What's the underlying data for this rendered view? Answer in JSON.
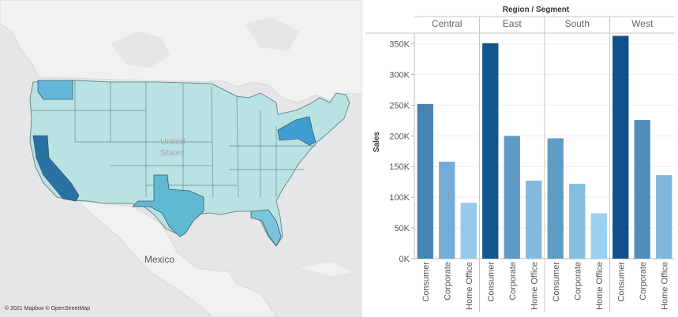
{
  "map": {
    "country_label": "United States",
    "mexico_label": "Mexico",
    "attribution": "© 2021 Mapbox © OpenStreetMap",
    "base_color": "#b9e3e2",
    "colors": {
      "california": "#2a72a4",
      "new_york": "#3f9fd3",
      "texas": "#5fb9d3",
      "washington": "#62b6d6",
      "florida": "#7bc5dc"
    }
  },
  "chart_data": {
    "type": "bar",
    "title": "Region / Segment",
    "ylabel": "Sales",
    "ylim": [
      0,
      370000
    ],
    "yticks": [
      0,
      50000,
      100000,
      150000,
      200000,
      250000,
      300000,
      350000
    ],
    "ytick_labels": [
      "0K",
      "50K",
      "100K",
      "150K",
      "200K",
      "250K",
      "300K",
      "350K"
    ],
    "regions": [
      {
        "name": "Central",
        "categories": [
          "Consumer",
          "Corporate",
          "Home Office"
        ],
        "values": [
          252000,
          158000,
          91000
        ]
      },
      {
        "name": "East",
        "categories": [
          "Consumer",
          "Corporate",
          "Home Office"
        ],
        "values": [
          351000,
          200000,
          127000
        ]
      },
      {
        "name": "South",
        "categories": [
          "Consumer",
          "Corporate",
          "Home Office"
        ],
        "values": [
          196000,
          122000,
          74000
        ]
      },
      {
        "name": "West",
        "categories": [
          "Consumer",
          "Corporate",
          "Home Office"
        ],
        "values": [
          363000,
          226000,
          136000
        ]
      }
    ],
    "color_low": "#9dd1f3",
    "color_high": "#0e5289"
  }
}
